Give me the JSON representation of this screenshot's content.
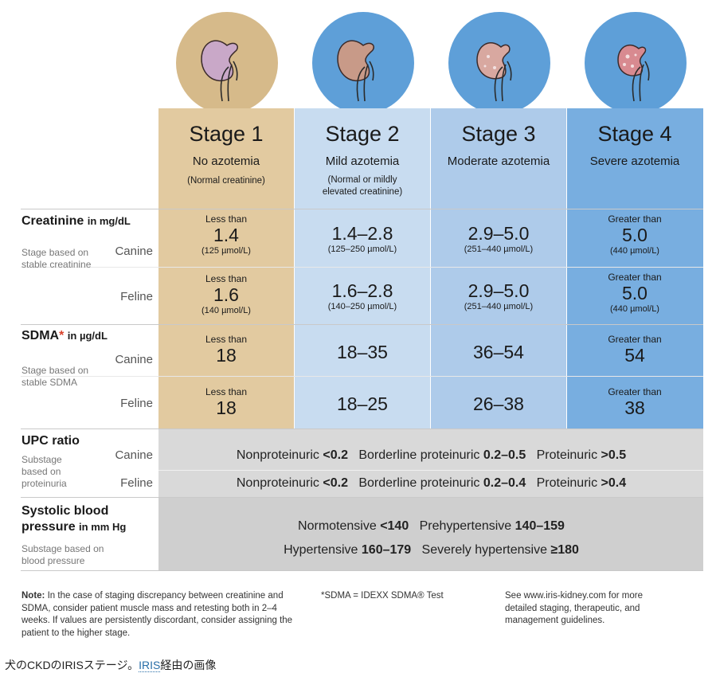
{
  "stages": [
    {
      "title": "Stage 1",
      "subtitle": "No azotemia",
      "note": "(Normal creatinine)",
      "circle_color": "#d6ba8a",
      "col_color": "#e2caa0"
    },
    {
      "title": "Stage 2",
      "subtitle": "Mild azotemia",
      "note": "(Normal or mildly elevated creatinine)",
      "circle_color": "#5e9fd8",
      "col_color": "#c8dcf0"
    },
    {
      "title": "Stage 3",
      "subtitle": "Moderate azotemia",
      "note": "",
      "circle_color": "#5e9fd8",
      "col_color": "#aecbea"
    },
    {
      "title": "Stage 4",
      "subtitle": "Severe azotemia",
      "note": "",
      "circle_color": "#5e9fd8",
      "col_color": "#78aee0"
    }
  ],
  "creatinine": {
    "heading": "Creatinine",
    "unit": "in mg/dL",
    "basis": "Stage based on stable creatinine",
    "canine_label": "Canine",
    "feline_label": "Feline",
    "canine": [
      {
        "pre": "Less than",
        "value": "1.4",
        "post": "(125 µmol/L)"
      },
      {
        "pre": "",
        "value": "1.4–2.8",
        "post": "(125–250 µmol/L)"
      },
      {
        "pre": "",
        "value": "2.9–5.0",
        "post": "(251–440 µmol/L)"
      },
      {
        "pre": "Greater than",
        "value": "5.0",
        "post": "(440 µmol/L)"
      }
    ],
    "feline": [
      {
        "pre": "Less than",
        "value": "1.6",
        "post": "(140 µmol/L)"
      },
      {
        "pre": "",
        "value": "1.6–2.8",
        "post": "(140–250 µmol/L)"
      },
      {
        "pre": "",
        "value": "2.9–5.0",
        "post": "(251–440 µmol/L)"
      },
      {
        "pre": "Greater than",
        "value": "5.0",
        "post": "(440 µmol/L)"
      }
    ]
  },
  "sdma": {
    "heading": "SDMA",
    "star": "*",
    "unit": "in µg/dL",
    "basis": "Stage based on stable SDMA",
    "canine_label": "Canine",
    "feline_label": "Feline",
    "canine": [
      {
        "pre": "Less than",
        "value": "18"
      },
      {
        "pre": "",
        "value": "18–35"
      },
      {
        "pre": "",
        "value": "36–54"
      },
      {
        "pre": "Greater than",
        "value": "54"
      }
    ],
    "feline": [
      {
        "pre": "Less than",
        "value": "18"
      },
      {
        "pre": "",
        "value": "18–25"
      },
      {
        "pre": "",
        "value": "26–38"
      },
      {
        "pre": "Greater than",
        "value": "38"
      }
    ]
  },
  "upc": {
    "heading": "UPC ratio",
    "basis": "Substage based on proteinuria",
    "canine_label": "Canine",
    "feline_label": "Feline",
    "canine": {
      "a": "Nonproteinuric",
      "av": "<0.2",
      "b": "Borderline proteinuric",
      "bv": "0.2–0.5",
      "c": "Proteinuric",
      "cv": ">0.5"
    },
    "feline": {
      "a": "Nonproteinuric",
      "av": "<0.2",
      "b": "Borderline proteinuric",
      "bv": "0.2–0.4",
      "c": "Proteinuric",
      "cv": ">0.4"
    }
  },
  "bp": {
    "heading1": "Systolic blood",
    "heading2": "pressure",
    "unit": "in mm Hg",
    "basis": "Substage based on blood pressure",
    "line1": {
      "a": "Normotensive",
      "av": "<140",
      "b": "Prehypertensive",
      "bv": "140–159"
    },
    "line2": {
      "a": "Hypertensive",
      "av": "160–179",
      "b": "Severely hypertensive",
      "bv": "≥180"
    }
  },
  "footer": {
    "note_label": "Note:",
    "note_text": "In the case of staging discrepancy between creatinine and SDMA, consider patient muscle mass and retesting both in 2–4 weeks. If values are persistently discordant, consider assigning the patient to the higher stage.",
    "sdma_def": "*SDMA = IDEXX SDMA® Test",
    "see": "See www.iris-kidney.com for more detailed staging, therapeutic, and management guidelines."
  },
  "caption": {
    "text": "犬のCKDのIRISステージ。",
    "link": "IRIS",
    "suffix": "経由の画像"
  }
}
